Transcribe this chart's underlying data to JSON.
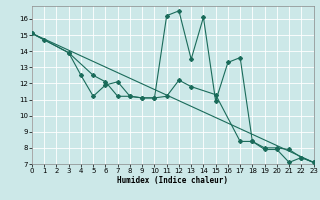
{
  "xlabel": "Humidex (Indice chaleur)",
  "bg_color": "#cce8e8",
  "grid_color": "#ffffff",
  "line_color": "#1a6b5a",
  "line1_x": [
    0,
    1,
    3,
    4,
    5,
    6,
    7,
    8,
    9,
    10,
    11,
    12,
    13,
    14,
    15,
    16,
    17,
    18,
    19,
    20,
    21,
    22,
    23
  ],
  "line1_y": [
    15.1,
    14.7,
    13.9,
    12.5,
    11.2,
    11.9,
    12.1,
    11.2,
    11.1,
    11.1,
    16.2,
    16.5,
    13.5,
    16.1,
    10.9,
    13.3,
    13.6,
    8.4,
    7.9,
    7.9,
    7.1,
    7.4,
    7.1
  ],
  "line2_x": [
    0,
    3,
    5,
    6,
    7,
    8,
    9,
    10,
    11,
    12,
    13,
    15,
    17,
    18,
    19,
    20,
    21,
    22,
    23
  ],
  "line2_y": [
    15.1,
    13.9,
    12.5,
    12.1,
    11.2,
    11.2,
    11.1,
    11.1,
    11.2,
    12.2,
    11.8,
    11.3,
    8.4,
    8.4,
    8.0,
    8.0,
    7.9,
    7.4,
    7.1
  ],
  "line3_x": [
    0,
    23
  ],
  "line3_y": [
    15.1,
    7.1
  ],
  "xlim": [
    0,
    23
  ],
  "ylim": [
    7,
    16.8
  ],
  "yticks": [
    7,
    8,
    9,
    10,
    11,
    12,
    13,
    14,
    15,
    16
  ],
  "xticks": [
    0,
    1,
    2,
    3,
    4,
    5,
    6,
    7,
    8,
    9,
    10,
    11,
    12,
    13,
    14,
    15,
    16,
    17,
    18,
    19,
    20,
    21,
    22,
    23
  ],
  "marker_size": 2.0,
  "line_width": 0.8,
  "tick_fontsize": 5.0,
  "xlabel_fontsize": 5.5
}
